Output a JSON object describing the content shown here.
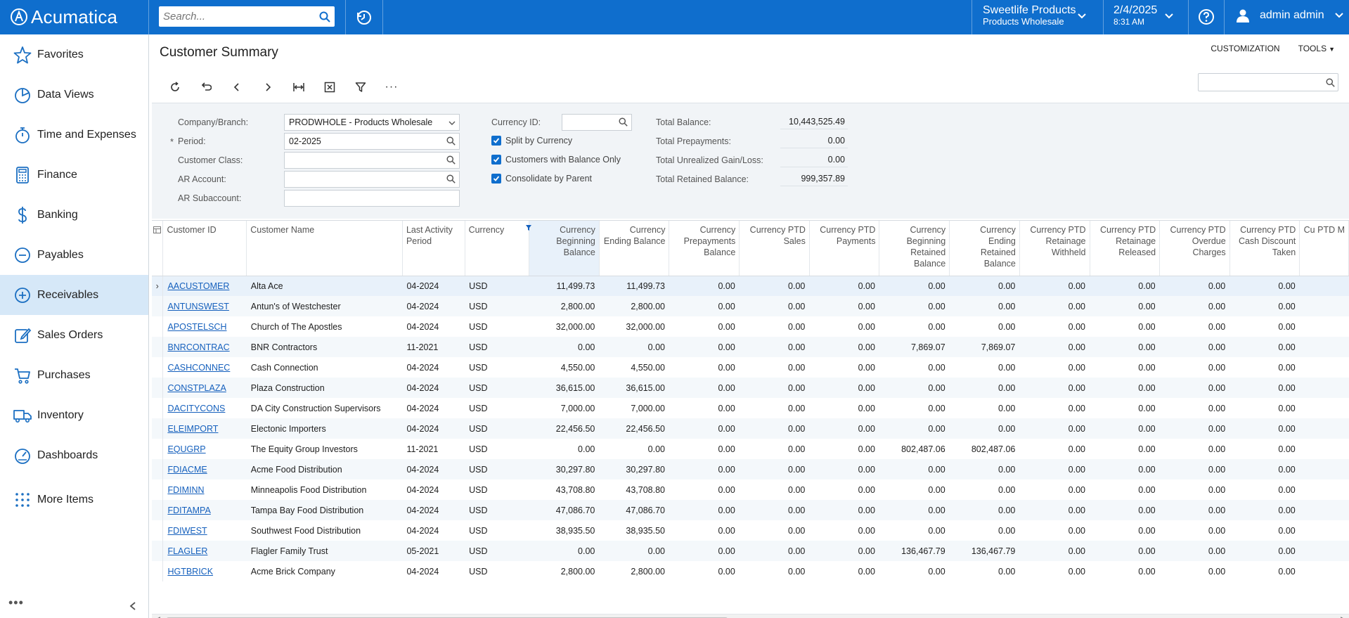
{
  "app": {
    "logo_text": "Acumatica"
  },
  "topbar": {
    "search_placeholder": "Search...",
    "company_line1": "Sweetlife Products",
    "company_line2": "Products Wholesale",
    "date_line1": "2/4/2025",
    "date_line2": "8:31 AM",
    "user": "admin admin",
    "color": "#0f6ecd"
  },
  "sidebar": {
    "items": [
      {
        "label": "Favorites",
        "icon": "star-icon"
      },
      {
        "label": "Data Views",
        "icon": "pie-chart-icon"
      },
      {
        "label": "Time and Expenses",
        "icon": "stopwatch-icon"
      },
      {
        "label": "Finance",
        "icon": "calculator-icon"
      },
      {
        "label": "Banking",
        "icon": "dollar-icon"
      },
      {
        "label": "Payables",
        "icon": "minus-circle-icon"
      },
      {
        "label": "Receivables",
        "icon": "plus-circle-icon",
        "active": true
      },
      {
        "label": "Sales Orders",
        "icon": "edit-icon"
      },
      {
        "label": "Purchases",
        "icon": "cart-icon"
      },
      {
        "label": "Inventory",
        "icon": "truck-icon"
      },
      {
        "label": "Dashboards",
        "icon": "gauge-icon"
      },
      {
        "label": "More Items",
        "icon": "grid-dots-icon"
      }
    ]
  },
  "page": {
    "title": "Customer Summary",
    "customization": "CUSTOMIZATION",
    "tools": "TOOLS"
  },
  "filters": {
    "company_label": "Company/Branch:",
    "company_value": "PRODWHOLE - Products Wholesale",
    "period_label": "Period:",
    "period_value": "02-2025",
    "customer_class_label": "Customer Class:",
    "customer_class_value": "",
    "ar_account_label": "AR Account:",
    "ar_account_value": "",
    "ar_subaccount_label": "AR Subaccount:",
    "ar_subaccount_value": "",
    "currency_label": "Currency ID:",
    "currency_value": "",
    "split_by_currency": "Split by Currency",
    "customers_with_balance": "Customers with Balance Only",
    "consolidate_by_parent": "Consolidate by Parent",
    "total_balance_label": "Total Balance:",
    "total_balance": "10,443,525.49",
    "total_prepayments_label": "Total Prepayments:",
    "total_prepayments": "0.00",
    "total_unrealized_label": "Total Unrealized Gain/Loss:",
    "total_unrealized": "0.00",
    "total_retained_label": "Total Retained Balance:",
    "total_retained": "999,357.89"
  },
  "grid": {
    "columns": [
      "Customer ID",
      "Customer Name",
      "Last Activity Period",
      "Currency",
      "Currency Beginning Balance",
      "Currency Ending Balance",
      "Currency Prepayments Balance",
      "Currency PTD Sales",
      "Currency PTD Payments",
      "Currency Beginning Retained Balance",
      "Currency Ending Retained Balance",
      "Currency PTD Retainage Withheld",
      "Currency PTD Retainage Released",
      "Currency PTD Overdue Charges",
      "Currency PTD Cash Discount Taken",
      "Cu PTD M"
    ],
    "rows": [
      [
        "AACUSTOMER",
        "Alta Ace",
        "04-2024",
        "USD",
        "11,499.73",
        "11,499.73",
        "0.00",
        "0.00",
        "0.00",
        "0.00",
        "0.00",
        "0.00",
        "0.00",
        "0.00",
        "0.00"
      ],
      [
        "ANTUNSWEST",
        "Antun's of Westchester",
        "04-2024",
        "USD",
        "2,800.00",
        "2,800.00",
        "0.00",
        "0.00",
        "0.00",
        "0.00",
        "0.00",
        "0.00",
        "0.00",
        "0.00",
        "0.00"
      ],
      [
        "APOSTELSCH",
        "Church of The Apostles",
        "04-2024",
        "USD",
        "32,000.00",
        "32,000.00",
        "0.00",
        "0.00",
        "0.00",
        "0.00",
        "0.00",
        "0.00",
        "0.00",
        "0.00",
        "0.00"
      ],
      [
        "BNRCONTRAC",
        "BNR Contractors",
        "11-2021",
        "USD",
        "0.00",
        "0.00",
        "0.00",
        "0.00",
        "0.00",
        "7,869.07",
        "7,869.07",
        "0.00",
        "0.00",
        "0.00",
        "0.00"
      ],
      [
        "CASHCONNEC",
        "Cash Connection",
        "04-2024",
        "USD",
        "4,550.00",
        "4,550.00",
        "0.00",
        "0.00",
        "0.00",
        "0.00",
        "0.00",
        "0.00",
        "0.00",
        "0.00",
        "0.00"
      ],
      [
        "CONSTPLAZA",
        "Plaza Construction",
        "04-2024",
        "USD",
        "36,615.00",
        "36,615.00",
        "0.00",
        "0.00",
        "0.00",
        "0.00",
        "0.00",
        "0.00",
        "0.00",
        "0.00",
        "0.00"
      ],
      [
        "DACITYCONS",
        "DA City Construction Supervisors",
        "04-2024",
        "USD",
        "7,000.00",
        "7,000.00",
        "0.00",
        "0.00",
        "0.00",
        "0.00",
        "0.00",
        "0.00",
        "0.00",
        "0.00",
        "0.00"
      ],
      [
        "ELEIMPORT",
        "Electonic Importers",
        "04-2024",
        "USD",
        "22,456.50",
        "22,456.50",
        "0.00",
        "0.00",
        "0.00",
        "0.00",
        "0.00",
        "0.00",
        "0.00",
        "0.00",
        "0.00"
      ],
      [
        "EQUGRP",
        "The Equity Group Investors",
        "11-2021",
        "USD",
        "0.00",
        "0.00",
        "0.00",
        "0.00",
        "0.00",
        "802,487.06",
        "802,487.06",
        "0.00",
        "0.00",
        "0.00",
        "0.00"
      ],
      [
        "FDIACME",
        "Acme Food Distribution",
        "04-2024",
        "USD",
        "30,297.80",
        "30,297.80",
        "0.00",
        "0.00",
        "0.00",
        "0.00",
        "0.00",
        "0.00",
        "0.00",
        "0.00",
        "0.00"
      ],
      [
        "FDIMINN",
        "Minneapolis Food Distribution",
        "04-2024",
        "USD",
        "43,708.80",
        "43,708.80",
        "0.00",
        "0.00",
        "0.00",
        "0.00",
        "0.00",
        "0.00",
        "0.00",
        "0.00",
        "0.00"
      ],
      [
        "FDITAMPA",
        "Tampa Bay Food Distribution",
        "04-2024",
        "USD",
        "47,086.70",
        "47,086.70",
        "0.00",
        "0.00",
        "0.00",
        "0.00",
        "0.00",
        "0.00",
        "0.00",
        "0.00",
        "0.00"
      ],
      [
        "FDIWEST",
        "Southwest Food Distribution",
        "04-2024",
        "USD",
        "38,935.50",
        "38,935.50",
        "0.00",
        "0.00",
        "0.00",
        "0.00",
        "0.00",
        "0.00",
        "0.00",
        "0.00",
        "0.00"
      ],
      [
        "FLAGLER",
        "Flagler Family Trust",
        "05-2021",
        "USD",
        "0.00",
        "0.00",
        "0.00",
        "0.00",
        "0.00",
        "136,467.79",
        "136,467.79",
        "0.00",
        "0.00",
        "0.00",
        "0.00"
      ],
      [
        "HGTBRICK",
        "Acme Brick Company",
        "04-2024",
        "USD",
        "2,800.00",
        "2,800.00",
        "0.00",
        "0.00",
        "0.00",
        "0.00",
        "0.00",
        "0.00",
        "0.00",
        "0.00",
        "0.00"
      ]
    ]
  }
}
